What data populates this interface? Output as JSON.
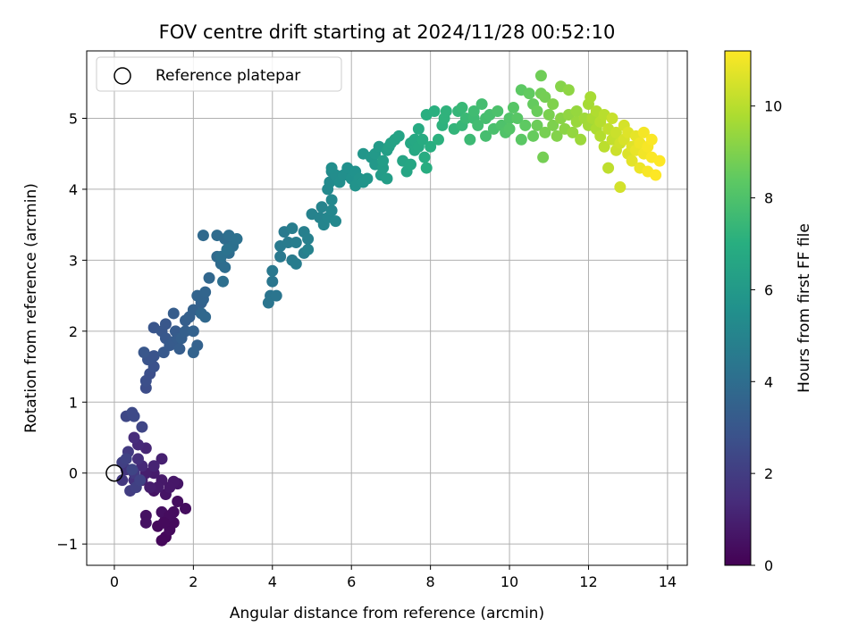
{
  "chart_data": {
    "type": "scatter",
    "title": "FOV centre drift starting at 2024/11/28 00:52:10",
    "xlabel": "Angular distance from reference (arcmin)",
    "ylabel": "Rotation from reference (arcmin)",
    "xlim": [
      -0.7,
      14.5
    ],
    "ylim": [
      -1.3,
      5.95
    ],
    "xticks": [
      0,
      2,
      4,
      6,
      8,
      10,
      12,
      14
    ],
    "xtick_labels": [
      "0",
      "2",
      "4",
      "6",
      "8",
      "10",
      "12",
      "14"
    ],
    "yticks": [
      -1,
      0,
      1,
      2,
      3,
      4,
      5
    ],
    "ytick_labels": [
      "−1",
      "0",
      "1",
      "2",
      "3",
      "4",
      "5"
    ],
    "grid": true,
    "legend": {
      "label": "Reference platepar",
      "placement": "top-left",
      "marker": "open-circle"
    },
    "reference_point": {
      "x": 0,
      "y": 0
    },
    "colorbar": {
      "label": "Hours from first FF file",
      "colormap": "viridis",
      "range": [
        0,
        11.2
      ],
      "ticks": [
        0,
        2,
        4,
        6,
        8,
        10
      ],
      "tick_labels": [
        "0",
        "2",
        "4",
        "6",
        "8",
        "10"
      ]
    },
    "points": [
      [
        1.3,
        -0.9,
        0.2
      ],
      [
        1.2,
        -0.95,
        0.2
      ],
      [
        1.4,
        -0.8,
        0.3
      ],
      [
        1.5,
        -0.7,
        0.3
      ],
      [
        1.1,
        -0.75,
        0.25
      ],
      [
        1.3,
        -0.65,
        0.3
      ],
      [
        1.5,
        -0.55,
        0.35
      ],
      [
        1.8,
        -0.5,
        0.4
      ],
      [
        1.6,
        -0.4,
        0.4
      ],
      [
        0.8,
        -0.6,
        0.5
      ],
      [
        0.8,
        -0.7,
        0.5
      ],
      [
        1.2,
        -0.55,
        0.45
      ],
      [
        1.4,
        -0.6,
        0.35
      ],
      [
        1.25,
        -0.7,
        0.3
      ],
      [
        1.0,
        -0.25,
        0.6
      ],
      [
        1.3,
        -0.3,
        0.6
      ],
      [
        1.6,
        -0.15,
        0.65
      ],
      [
        1.5,
        -0.12,
        0.7
      ],
      [
        1.2,
        -0.1,
        0.75
      ],
      [
        1.4,
        -0.2,
        0.7
      ],
      [
        1.1,
        -0.2,
        0.8
      ],
      [
        0.9,
        -0.2,
        0.9
      ],
      [
        1.0,
        0.0,
        0.85
      ],
      [
        0.8,
        0.0,
        0.95
      ],
      [
        0.7,
        -0.1,
        1.0
      ],
      [
        1.2,
        0.2,
        1.0
      ],
      [
        1.0,
        0.1,
        1.1
      ],
      [
        0.8,
        0.35,
        1.2
      ],
      [
        0.6,
        0.4,
        1.3
      ],
      [
        0.7,
        0.1,
        1.3
      ],
      [
        0.5,
        0.5,
        1.4
      ],
      [
        0.6,
        0.2,
        1.5
      ],
      [
        0.5,
        -0.1,
        1.6
      ],
      [
        0.3,
        0.05,
        1.7
      ],
      [
        0.2,
        -0.1,
        1.8
      ],
      [
        0.35,
        0.3,
        1.9
      ],
      [
        0.5,
        0.0,
        1.9
      ],
      [
        0.4,
        -0.25,
        2.0
      ],
      [
        0.55,
        -0.2,
        2.1
      ],
      [
        0.2,
        0.15,
        2.1
      ],
      [
        0.3,
        0.2,
        2.2
      ],
      [
        0.45,
        0.05,
        2.3
      ],
      [
        0.65,
        -0.1,
        2.2
      ],
      [
        0.7,
        0.65,
        2.3
      ],
      [
        0.3,
        0.8,
        2.4
      ],
      [
        0.5,
        0.8,
        2.5
      ],
      [
        0.45,
        0.85,
        2.5
      ],
      [
        0.8,
        1.2,
        2.6
      ],
      [
        0.9,
        1.4,
        2.7
      ],
      [
        0.8,
        1.3,
        2.7
      ],
      [
        1.0,
        1.5,
        2.8
      ],
      [
        0.85,
        1.6,
        2.9
      ],
      [
        1.0,
        1.65,
        2.9
      ],
      [
        0.75,
        1.7,
        3.0
      ],
      [
        1.0,
        2.05,
        2.95
      ],
      [
        1.2,
        2.0,
        3.0
      ],
      [
        1.3,
        1.9,
        3.05
      ],
      [
        1.25,
        1.7,
        3.1
      ],
      [
        1.4,
        1.8,
        3.15
      ],
      [
        1.3,
        2.1,
        3.0
      ],
      [
        1.5,
        1.85,
        3.2
      ],
      [
        1.55,
        2.0,
        3.2
      ],
      [
        1.6,
        1.9,
        3.25
      ],
      [
        1.65,
        1.75,
        3.3
      ],
      [
        1.5,
        2.25,
        3.3
      ],
      [
        1.7,
        1.9,
        3.35
      ],
      [
        1.8,
        2.0,
        3.4
      ],
      [
        1.8,
        2.15,
        3.35
      ],
      [
        1.9,
        2.2,
        3.4
      ],
      [
        2.0,
        2.3,
        3.45
      ],
      [
        2.0,
        2.0,
        3.5
      ],
      [
        2.1,
        1.8,
        3.5
      ],
      [
        2.0,
        1.7,
        3.55
      ],
      [
        2.2,
        2.4,
        3.5
      ],
      [
        2.25,
        2.45,
        3.6
      ],
      [
        2.1,
        2.5,
        3.6
      ],
      [
        2.3,
        2.55,
        3.65
      ],
      [
        2.4,
        2.75,
        3.7
      ],
      [
        2.2,
        2.25,
        3.7
      ],
      [
        2.3,
        2.2,
        3.75
      ],
      [
        2.25,
        3.35,
        3.8
      ],
      [
        2.6,
        3.05,
        3.85
      ],
      [
        2.7,
        2.95,
        3.9
      ],
      [
        2.6,
        3.35,
        3.9
      ],
      [
        2.8,
        3.3,
        3.95
      ],
      [
        2.8,
        2.9,
        4.0
      ],
      [
        2.9,
        3.1,
        4.0
      ],
      [
        2.75,
        2.7,
        4.05
      ],
      [
        2.9,
        3.35,
        4.05
      ],
      [
        3.0,
        3.2,
        4.1
      ],
      [
        3.1,
        3.3,
        4.15
      ],
      [
        2.7,
        3.05,
        4.1
      ],
      [
        2.85,
        3.15,
        4.2
      ],
      [
        3.95,
        2.5,
        4.3
      ],
      [
        3.9,
        2.4,
        4.35
      ],
      [
        4.1,
        2.5,
        4.35
      ],
      [
        4.0,
        2.7,
        4.4
      ],
      [
        4.0,
        2.85,
        4.45
      ],
      [
        4.2,
        3.05,
        4.5
      ],
      [
        4.2,
        3.2,
        4.55
      ],
      [
        4.3,
        3.4,
        4.55
      ],
      [
        4.4,
        3.25,
        4.6
      ],
      [
        4.5,
        3.0,
        4.6
      ],
      [
        4.6,
        2.95,
        4.65
      ],
      [
        4.5,
        3.45,
        4.7
      ],
      [
        4.6,
        3.25,
        4.7
      ],
      [
        4.8,
        3.1,
        4.75
      ],
      [
        4.8,
        3.4,
        4.8
      ],
      [
        4.9,
        3.3,
        4.85
      ],
      [
        4.9,
        3.15,
        4.9
      ],
      [
        5.0,
        3.65,
        4.9
      ],
      [
        5.2,
        3.6,
        4.95
      ],
      [
        5.25,
        3.75,
        5.0
      ],
      [
        5.3,
        3.5,
        5.05
      ],
      [
        5.4,
        3.6,
        5.1
      ],
      [
        5.5,
        3.7,
        5.15
      ],
      [
        5.6,
        3.55,
        5.2
      ],
      [
        5.5,
        3.85,
        5.2
      ],
      [
        5.4,
        4.0,
        5.25
      ],
      [
        5.45,
        4.1,
        5.3
      ],
      [
        5.5,
        4.25,
        5.35
      ],
      [
        5.6,
        4.2,
        5.4
      ],
      [
        5.5,
        4.3,
        5.45
      ],
      [
        5.7,
        4.1,
        5.45
      ],
      [
        5.8,
        4.2,
        5.5
      ],
      [
        5.9,
        4.3,
        5.55
      ],
      [
        6.0,
        4.15,
        5.6
      ],
      [
        6.1,
        4.25,
        5.65
      ],
      [
        6.2,
        4.15,
        5.7
      ],
      [
        6.1,
        4.05,
        5.7
      ],
      [
        6.3,
        4.1,
        5.75
      ],
      [
        6.4,
        4.15,
        5.8
      ],
      [
        6.3,
        4.5,
        5.85
      ],
      [
        6.5,
        4.45,
        5.9
      ],
      [
        6.6,
        4.35,
        5.95
      ],
      [
        6.6,
        4.5,
        6.0
      ],
      [
        6.7,
        4.6,
        6.05
      ],
      [
        6.75,
        4.2,
        6.1
      ],
      [
        6.8,
        4.3,
        6.15
      ],
      [
        6.9,
        4.15,
        6.2
      ],
      [
        6.8,
        4.4,
        6.2
      ],
      [
        6.9,
        4.55,
        6.25
      ],
      [
        6.95,
        4.6,
        6.3
      ],
      [
        7.0,
        4.65,
        6.35
      ],
      [
        7.1,
        4.7,
        6.4
      ],
      [
        7.2,
        4.75,
        6.45
      ],
      [
        7.3,
        4.4,
        6.5
      ],
      [
        7.4,
        4.25,
        6.55
      ],
      [
        7.5,
        4.35,
        6.6
      ],
      [
        7.5,
        4.65,
        6.65
      ],
      [
        7.6,
        4.7,
        6.7
      ],
      [
        7.6,
        4.55,
        6.7
      ],
      [
        7.7,
        4.6,
        6.75
      ],
      [
        7.7,
        4.85,
        6.8
      ],
      [
        7.8,
        4.7,
        6.85
      ],
      [
        7.85,
        4.45,
        6.9
      ],
      [
        7.9,
        4.3,
        6.95
      ],
      [
        8.0,
        4.6,
        7.0
      ],
      [
        7.9,
        5.05,
        7.0
      ],
      [
        8.1,
        5.1,
        7.05
      ],
      [
        8.2,
        4.7,
        7.1
      ],
      [
        8.3,
        4.9,
        7.15
      ],
      [
        8.35,
        5.0,
        7.2
      ],
      [
        8.4,
        5.1,
        7.2
      ],
      [
        8.6,
        4.85,
        7.3
      ],
      [
        8.7,
        5.1,
        7.35
      ],
      [
        8.8,
        4.9,
        7.4
      ],
      [
        8.8,
        5.15,
        7.45
      ],
      [
        8.9,
        5.0,
        7.5
      ],
      [
        9.0,
        4.7,
        7.55
      ],
      [
        9.1,
        5.0,
        7.6
      ],
      [
        9.1,
        5.1,
        7.65
      ],
      [
        9.2,
        4.9,
        7.7
      ],
      [
        9.3,
        5.2,
        7.75
      ],
      [
        9.4,
        5.0,
        7.8
      ],
      [
        9.4,
        4.75,
        7.8
      ],
      [
        9.5,
        5.05,
        7.85
      ],
      [
        9.6,
        4.85,
        7.9
      ],
      [
        9.7,
        5.1,
        7.95
      ],
      [
        9.8,
        4.9,
        8.0
      ],
      [
        9.9,
        4.8,
        8.05
      ],
      [
        10.0,
        5.0,
        8.1
      ],
      [
        10.0,
        4.85,
        8.15
      ],
      [
        10.1,
        5.15,
        8.2
      ],
      [
        10.2,
        5.0,
        8.25
      ],
      [
        10.3,
        4.7,
        8.3
      ],
      [
        10.3,
        5.4,
        8.35
      ],
      [
        10.4,
        4.9,
        8.4
      ],
      [
        10.5,
        5.35,
        8.45
      ],
      [
        10.6,
        5.2,
        8.5
      ],
      [
        10.6,
        4.75,
        8.55
      ],
      [
        10.7,
        5.1,
        8.6
      ],
      [
        10.7,
        4.9,
        8.65
      ],
      [
        10.8,
        5.6,
        8.7
      ],
      [
        10.8,
        5.35,
        8.75
      ],
      [
        10.9,
        5.3,
        8.8
      ],
      [
        10.85,
        4.45,
        8.8
      ],
      [
        10.9,
        4.8,
        8.85
      ],
      [
        11.0,
        5.05,
        8.9
      ],
      [
        11.1,
        4.9,
        8.95
      ],
      [
        11.1,
        5.2,
        9.0
      ],
      [
        11.2,
        4.75,
        9.05
      ],
      [
        11.3,
        5.45,
        9.1
      ],
      [
        11.3,
        5.0,
        9.15
      ],
      [
        11.4,
        4.85,
        9.2
      ],
      [
        11.5,
        5.4,
        9.25
      ],
      [
        11.5,
        5.05,
        9.3
      ],
      [
        11.6,
        4.8,
        9.35
      ],
      [
        11.7,
        5.1,
        9.4
      ],
      [
        11.7,
        4.95,
        9.45
      ],
      [
        11.8,
        4.7,
        9.5
      ],
      [
        11.9,
        5.0,
        9.55
      ],
      [
        12.0,
        4.9,
        9.6
      ],
      [
        12.0,
        5.2,
        9.65
      ],
      [
        12.05,
        5.3,
        9.7
      ],
      [
        12.1,
        5.0,
        9.75
      ],
      [
        12.2,
        4.85,
        9.8
      ],
      [
        12.2,
        5.1,
        9.85
      ],
      [
        12.3,
        4.75,
        9.9
      ],
      [
        12.3,
        4.95,
        9.95
      ],
      [
        12.4,
        5.05,
        10.0
      ],
      [
        12.4,
        4.6,
        10.05
      ],
      [
        12.5,
        4.3,
        10.1
      ],
      [
        12.5,
        4.85,
        10.15
      ],
      [
        12.6,
        4.7,
        10.2
      ],
      [
        12.6,
        5.0,
        10.25
      ],
      [
        12.7,
        4.8,
        10.3
      ],
      [
        12.7,
        4.55,
        10.35
      ],
      [
        12.8,
        4.65,
        10.4
      ],
      [
        12.8,
        4.03,
        10.45
      ],
      [
        12.9,
        4.9,
        10.5
      ],
      [
        12.9,
        4.7,
        10.55
      ],
      [
        13.0,
        4.5,
        10.6
      ],
      [
        13.0,
        4.8,
        10.65
      ],
      [
        13.1,
        4.6,
        10.7
      ],
      [
        13.1,
        4.4,
        10.75
      ],
      [
        13.2,
        4.75,
        10.8
      ],
      [
        13.2,
        4.55,
        10.85
      ],
      [
        13.3,
        4.3,
        10.9
      ],
      [
        13.3,
        4.65,
        10.95
      ],
      [
        13.4,
        4.5,
        11.0
      ],
      [
        13.4,
        4.8,
        11.05
      ],
      [
        13.5,
        4.6,
        11.1
      ],
      [
        13.5,
        4.25,
        11.1
      ],
      [
        13.6,
        4.45,
        11.15
      ],
      [
        13.6,
        4.7,
        11.15
      ],
      [
        13.7,
        4.2,
        11.2
      ],
      [
        13.8,
        4.4,
        11.2
      ]
    ]
  }
}
